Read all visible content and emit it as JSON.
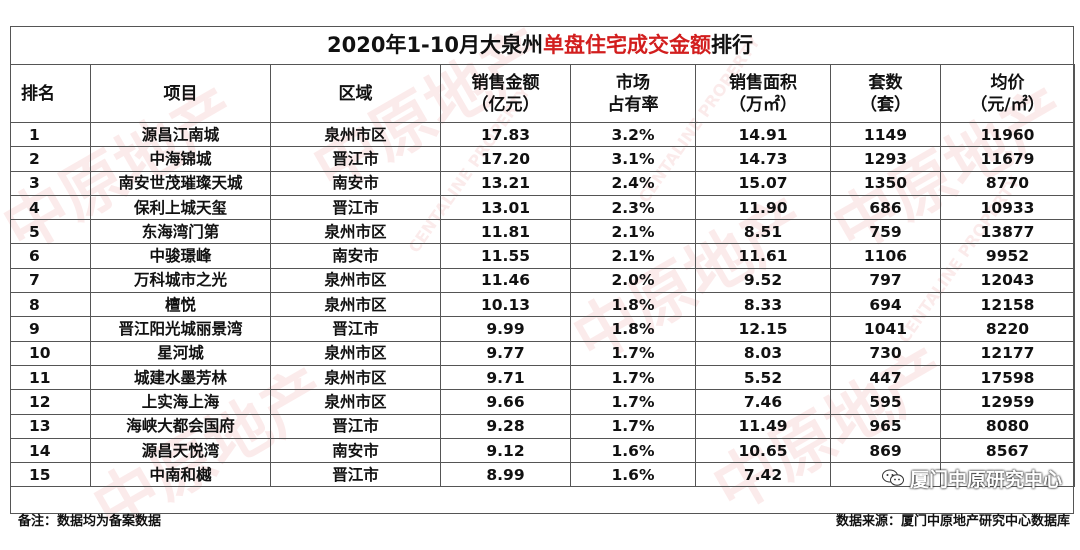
{
  "title": {
    "prefix": "2020年1-10月大泉州",
    "highlight": "单盘住宅成交金额",
    "suffix": "排行"
  },
  "headers": {
    "rank": "排名",
    "project": "项目",
    "region": "区域",
    "sales_amount": "销售金额\n（亿元）",
    "market_share": "市场\n占有率",
    "sales_area": "销售面积\n（万㎡）",
    "units": "套数\n（套）",
    "avg_price": "均价\n（元/㎡）"
  },
  "rows": [
    [
      "1",
      "源昌江南城",
      "泉州市区",
      "17.83",
      "3.2%",
      "14.91",
      "1149",
      "11960"
    ],
    [
      "2",
      "中海锦城",
      "晋江市",
      "17.20",
      "3.1%",
      "14.73",
      "1293",
      "11679"
    ],
    [
      "3",
      "南安世茂璀璨天城",
      "南安市",
      "13.21",
      "2.4%",
      "15.07",
      "1350",
      "8770"
    ],
    [
      "4",
      "保利上城天玺",
      "晋江市",
      "13.01",
      "2.3%",
      "11.90",
      "686",
      "10933"
    ],
    [
      "5",
      "东海湾门第",
      "泉州市区",
      "11.81",
      "2.1%",
      "8.51",
      "759",
      "13877"
    ],
    [
      "6",
      "中骏璟峰",
      "南安市",
      "11.55",
      "2.1%",
      "11.61",
      "1106",
      "9952"
    ],
    [
      "7",
      "万科城市之光",
      "泉州市区",
      "11.46",
      "2.0%",
      "9.52",
      "797",
      "12043"
    ],
    [
      "8",
      "檀悦",
      "泉州市区",
      "10.13",
      "1.8%",
      "8.33",
      "694",
      "12158"
    ],
    [
      "9",
      "晋江阳光城丽景湾",
      "晋江市",
      "9.99",
      "1.8%",
      "12.15",
      "1041",
      "8220"
    ],
    [
      "10",
      "星河城",
      "泉州市区",
      "9.77",
      "1.7%",
      "8.03",
      "730",
      "12177"
    ],
    [
      "11",
      "城建水墨芳林",
      "泉州市区",
      "9.71",
      "1.7%",
      "5.52",
      "447",
      "17598"
    ],
    [
      "12",
      "上实海上海",
      "泉州市区",
      "9.66",
      "1.7%",
      "7.46",
      "595",
      "12959"
    ],
    [
      "13",
      "海峡大都会国府",
      "晋江市",
      "9.28",
      "1.7%",
      "11.49",
      "965",
      "8080"
    ],
    [
      "14",
      "源昌天悦湾",
      "南安市",
      "9.12",
      "1.6%",
      "10.65",
      "869",
      "8567"
    ],
    [
      "15",
      "中南和樾",
      "晋江市",
      "8.99",
      "1.6%",
      "7.42",
      "",
      ""
    ]
  ],
  "footer": {
    "note": "备注：数据均为备案数据",
    "source": "数据来源：厦门中原地产研究中心数据库"
  },
  "wechat_label": "厦门中原研究中心",
  "watermark": {
    "cn": "中原地产",
    "en": "CENTALINE PROPERTY"
  },
  "colors": {
    "highlight": "#d21e1e",
    "border": "#555555",
    "watermark": "#dc3c3c"
  }
}
